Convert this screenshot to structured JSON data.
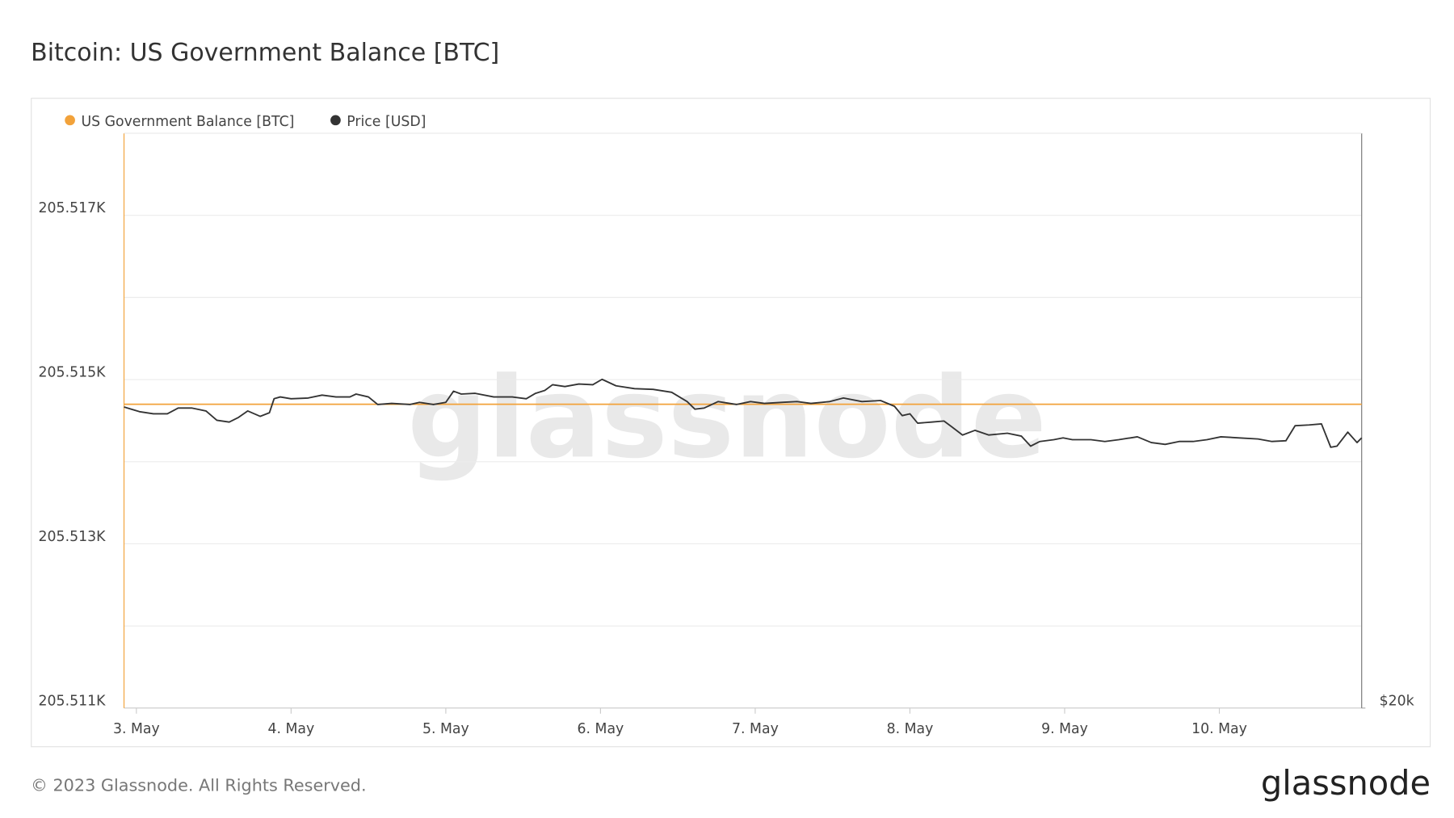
{
  "chart_data": {
    "type": "line",
    "title": "Bitcoin: US Government Balance [BTC]",
    "watermark": "glassnode",
    "footer": "© 2023 Glassnode. All Rights Reserved.",
    "logo": "glassnode",
    "x": [
      2.92,
      3.02,
      3.11,
      3.2,
      3.27,
      3.36,
      3.45,
      3.52,
      3.6,
      3.66,
      3.72,
      3.8,
      3.86,
      3.89,
      3.93,
      4.0,
      4.11,
      4.2,
      4.29,
      4.38,
      4.42,
      4.5,
      4.56,
      4.65,
      4.77,
      4.83,
      4.92,
      5.0,
      5.05,
      5.1,
      5.19,
      5.31,
      5.43,
      5.52,
      5.58,
      5.64,
      5.69,
      5.77,
      5.86,
      5.95,
      6.01,
      6.1,
      6.22,
      6.34,
      6.46,
      6.56,
      6.61,
      6.67,
      6.76,
      6.88,
      6.97,
      7.06,
      7.18,
      7.27,
      7.36,
      7.48,
      7.57,
      7.69,
      7.81,
      7.9,
      7.95,
      8.0,
      8.05,
      8.14,
      8.22,
      8.27,
      8.34,
      8.42,
      8.51,
      8.63,
      8.72,
      8.78,
      8.84,
      8.93,
      8.99,
      9.05,
      9.17,
      9.26,
      9.35,
      9.47,
      9.56,
      9.65,
      9.74,
      9.83,
      9.92,
      10.01,
      10.13,
      10.25,
      10.34,
      10.43,
      10.49,
      10.58,
      10.66,
      10.72,
      10.76,
      10.83,
      10.89,
      10.92
    ],
    "series": [
      {
        "name": "US Government Balance [BTC]",
        "color": "#f2a23a",
        "values": [
          205514.7,
          205514.7,
          205514.7,
          205514.7,
          205514.7,
          205514.7,
          205514.7,
          205514.7,
          205514.7,
          205514.7,
          205514.7,
          205514.7,
          205514.7,
          205514.7,
          205514.7,
          205514.7,
          205514.7,
          205514.7,
          205514.7,
          205514.7,
          205514.7,
          205514.7,
          205514.7,
          205514.7,
          205514.7,
          205514.7,
          205514.7,
          205514.7,
          205514.7,
          205514.7,
          205514.7,
          205514.7,
          205514.7,
          205514.7,
          205514.7,
          205514.7,
          205514.7,
          205514.7,
          205514.7,
          205514.7,
          205514.7,
          205514.7,
          205514.7,
          205514.7,
          205514.7,
          205514.7,
          205514.7,
          205514.7,
          205514.7,
          205514.7,
          205514.7,
          205514.7,
          205514.7,
          205514.7,
          205514.7,
          205514.7,
          205514.7,
          205514.7,
          205514.7,
          205514.7,
          205514.7,
          205514.7,
          205514.7,
          205514.7,
          205514.7,
          205514.7,
          205514.7,
          205514.7,
          205514.7,
          205514.7,
          205514.7,
          205514.7,
          205514.7,
          205514.7,
          205514.7,
          205514.7,
          205514.7,
          205514.7,
          205514.7,
          205514.7,
          205514.7,
          205514.7,
          205514.7,
          205514.7,
          205514.7,
          205514.7,
          205514.7,
          205514.7,
          205514.7,
          205514.7,
          205514.7,
          205514.7,
          205514.7,
          205514.7,
          205514.7,
          205514.7,
          205514.7,
          205514.7
        ]
      },
      {
        "name": "Price [USD]",
        "color": "#333333",
        "axis": "y2",
        "values": [
          28380,
          28250,
          28190,
          28190,
          28350,
          28350,
          28270,
          28010,
          27960,
          28090,
          28270,
          28120,
          28220,
          28610,
          28660,
          28610,
          28630,
          28710,
          28660,
          28660,
          28740,
          28660,
          28450,
          28480,
          28450,
          28510,
          28450,
          28510,
          28820,
          28740,
          28760,
          28660,
          28660,
          28610,
          28760,
          28840,
          29000,
          28950,
          29020,
          29000,
          29150,
          28970,
          28890,
          28870,
          28790,
          28530,
          28320,
          28350,
          28530,
          28450,
          28530,
          28480,
          28510,
          28530,
          28480,
          28530,
          28630,
          28530,
          28560,
          28400,
          28140,
          28190,
          27930,
          27960,
          27990,
          27830,
          27600,
          27730,
          27600,
          27650,
          27570,
          27290,
          27420,
          27470,
          27520,
          27470,
          27470,
          27420,
          27470,
          27550,
          27390,
          27340,
          27420,
          27420,
          27470,
          27550,
          27520,
          27490,
          27420,
          27440,
          27860,
          27880,
          27910,
          27260,
          27290,
          27680,
          27390,
          27520
        ]
      }
    ],
    "xlim": [
      2.92,
      10.92
    ],
    "xticks": [
      {
        "value": 3,
        "label": "3. May"
      },
      {
        "value": 4,
        "label": "4. May"
      },
      {
        "value": 5,
        "label": "5. May"
      },
      {
        "value": 6,
        "label": "6. May"
      },
      {
        "value": 7,
        "label": "7. May"
      },
      {
        "value": 8,
        "label": "8. May"
      },
      {
        "value": 9,
        "label": "9. May"
      },
      {
        "value": 10,
        "label": "10. May"
      }
    ],
    "ylim": [
      205511,
      205518
    ],
    "yticks": [
      {
        "value": 205511,
        "label": "205.511K"
      },
      {
        "value": 205512,
        "label": null
      },
      {
        "value": 205513,
        "label": "205.513K"
      },
      {
        "value": 205514,
        "label": null
      },
      {
        "value": 205515,
        "label": "205.515K"
      },
      {
        "value": 205516,
        "label": null
      },
      {
        "value": 205517,
        "label": "205.517K"
      }
    ],
    "y2lim": [
      20000,
      36000
    ],
    "y2ticks": [
      {
        "value": 20000,
        "label": "$20k"
      }
    ],
    "grid": true
  }
}
